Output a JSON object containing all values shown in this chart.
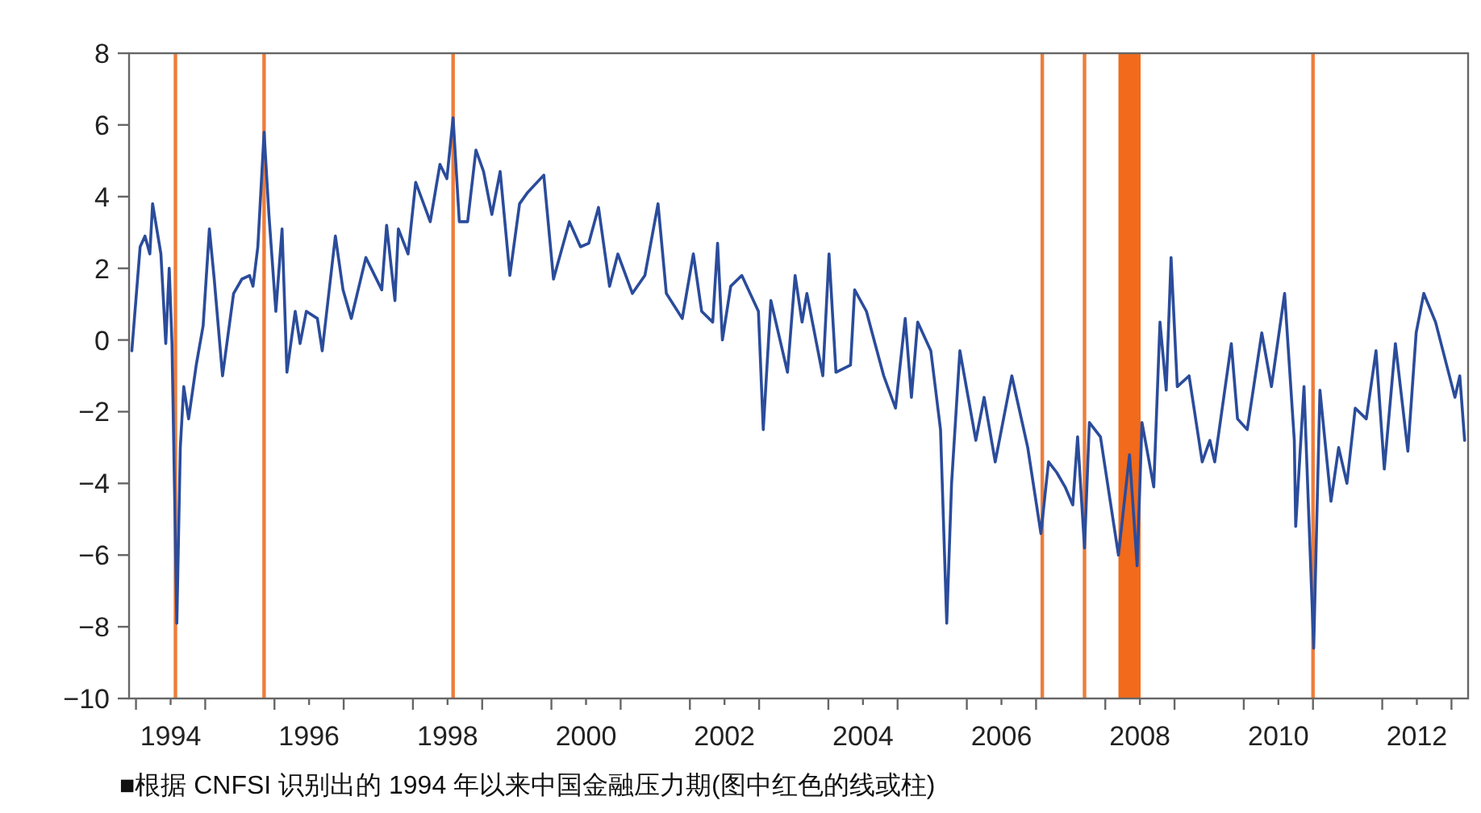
{
  "chart_data": {
    "type": "line",
    "x": [
      1993.94,
      1994.06,
      1994.13,
      1994.2,
      1994.24,
      1994.36,
      1994.43,
      1994.48,
      1994.52,
      1994.59,
      1994.64,
      1994.69,
      1994.76,
      1994.87,
      1994.97,
      1995.06,
      1995.13,
      1995.25,
      1995.41,
      1995.53,
      1995.64,
      1995.69,
      1995.76,
      1995.85,
      1995.92,
      1996.02,
      1996.11,
      1996.18,
      1996.3,
      1996.37,
      1996.46,
      1996.62,
      1996.69,
      1996.88,
      1996.99,
      1997.11,
      1997.32,
      1997.55,
      1997.62,
      1997.74,
      1997.79,
      1997.93,
      1998.04,
      1998.25,
      1998.39,
      1998.49,
      1998.58,
      1998.67,
      1998.79,
      1998.91,
      1999.02,
      1999.14,
      1999.26,
      1999.4,
      1999.54,
      1999.65,
      1999.89,
      2000.03,
      2000.26,
      2000.42,
      2000.54,
      2000.68,
      2000.84,
      2000.96,
      2001.17,
      2001.35,
      2001.54,
      2001.66,
      2001.89,
      2002.05,
      2002.17,
      2002.33,
      2002.4,
      2002.47,
      2002.59,
      2002.75,
      2002.99,
      2003.06,
      2003.17,
      2003.41,
      2003.52,
      2003.62,
      2003.69,
      2003.92,
      2004.01,
      2004.11,
      2004.32,
      2004.38,
      2004.55,
      2004.66,
      2004.8,
      2004.97,
      2005.11,
      2005.2,
      2005.29,
      2005.48,
      2005.62,
      2005.71,
      2005.78,
      2005.9,
      2006.13,
      2006.25,
      2006.41,
      2006.65,
      2006.88,
      2007.07,
      2007.18,
      2007.3,
      2007.42,
      2007.53,
      2007.6,
      2007.7,
      2007.77,
      2007.93,
      2008.19,
      2008.35,
      2008.46,
      2008.53,
      2008.7,
      2008.79,
      2008.88,
      2008.95,
      2009.04,
      2009.21,
      2009.4,
      2009.51,
      2009.58,
      2009.82,
      2009.91,
      2010.05,
      2010.26,
      2010.4,
      2010.59,
      2010.73,
      2010.75,
      2010.87,
      2011.01,
      2011.1,
      2011.26,
      2011.37,
      2011.49,
      2011.61,
      2011.77,
      2011.91,
      2012.03,
      2012.19,
      2012.37,
      2012.49,
      2012.6,
      2012.77,
      2013.05,
      2013.12,
      2013.19
    ],
    "series": [
      {
        "color": "#2b4c9b",
        "values": [
          -0.3,
          2.6,
          2.9,
          2.4,
          3.8,
          2.4,
          -0.1,
          2.0,
          -0.1,
          -7.9,
          -3.0,
          -1.3,
          -2.2,
          -0.7,
          0.4,
          3.1,
          1.7,
          -1.0,
          1.3,
          1.7,
          1.8,
          1.5,
          2.6,
          5.8,
          3.5,
          0.8,
          3.1,
          -0.9,
          0.8,
          -0.1,
          0.8,
          0.6,
          -0.3,
          2.9,
          1.4,
          0.6,
          2.3,
          1.4,
          3.2,
          1.1,
          3.1,
          2.4,
          4.4,
          3.3,
          4.9,
          4.5,
          6.2,
          3.3,
          3.3,
          5.3,
          4.7,
          3.5,
          4.7,
          1.8,
          3.8,
          4.1,
          4.6,
          1.7,
          3.3,
          2.6,
          2.7,
          3.7,
          1.5,
          2.4,
          1.3,
          1.8,
          3.8,
          1.3,
          0.6,
          2.4,
          0.8,
          0.5,
          2.7,
          0.0,
          1.5,
          1.8,
          0.8,
          -2.5,
          1.1,
          -0.9,
          1.8,
          0.5,
          1.3,
          -1.0,
          2.4,
          -0.9,
          -0.7,
          1.4,
          0.8,
          0.0,
          -1.0,
          -1.9,
          0.6,
          -1.6,
          0.5,
          -0.3,
          -2.5,
          -7.9,
          -4.0,
          -0.3,
          -2.8,
          -1.6,
          -3.4,
          -1.0,
          -3.0,
          -5.4,
          -3.4,
          -3.7,
          -4.1,
          -4.6,
          -2.7,
          -5.8,
          -2.3,
          -2.7,
          -6.0,
          -3.2,
          -6.3,
          -2.3,
          -4.1,
          0.5,
          -1.4,
          2.3,
          -1.3,
          -1.0,
          -3.4,
          -2.8,
          -3.4,
          -0.1,
          -2.2,
          -2.5,
          0.2,
          -1.3,
          1.3,
          -2.8,
          -5.2,
          -1.3,
          -8.6,
          -1.4,
          -4.5,
          -3.0,
          -4.0,
          -1.9,
          -2.2,
          -0.3,
          -3.6,
          -0.1,
          -3.1,
          0.2,
          1.3,
          0.5,
          -1.6,
          -1.0,
          -2.8
        ]
      }
    ],
    "xlim": [
      1993.9,
      2013.24
    ],
    "xticks": [
      {
        "value": 1994,
        "label": null
      },
      {
        "value": 1994.5,
        "label": "1994"
      },
      {
        "value": 1995,
        "label": null
      },
      {
        "value": 1996,
        "label": null
      },
      {
        "value": 1996.5,
        "label": "1996"
      },
      {
        "value": 1997,
        "label": null
      },
      {
        "value": 1998,
        "label": null
      },
      {
        "value": 1998.5,
        "label": "1998"
      },
      {
        "value": 1999,
        "label": null
      },
      {
        "value": 2000,
        "label": null
      },
      {
        "value": 2000.5,
        "label": "2000"
      },
      {
        "value": 2001,
        "label": null
      },
      {
        "value": 2002,
        "label": null
      },
      {
        "value": 2002.5,
        "label": "2002"
      },
      {
        "value": 2003,
        "label": null
      },
      {
        "value": 2004,
        "label": null
      },
      {
        "value": 2004.5,
        "label": "2004"
      },
      {
        "value": 2005,
        "label": null
      },
      {
        "value": 2006,
        "label": null
      },
      {
        "value": 2006.5,
        "label": "2006"
      },
      {
        "value": 2007,
        "label": null
      },
      {
        "value": 2008,
        "label": null
      },
      {
        "value": 2008.5,
        "label": "2008"
      },
      {
        "value": 2009,
        "label": null
      },
      {
        "value": 2010,
        "label": null
      },
      {
        "value": 2010.5,
        "label": "2010"
      },
      {
        "value": 2011,
        "label": null
      },
      {
        "value": 2012,
        "label": null
      },
      {
        "value": 2012.5,
        "label": "2012"
      },
      {
        "value": 2013,
        "label": null
      }
    ],
    "ylim": [
      -10,
      8
    ],
    "yticks": [
      {
        "value": -10,
        "label": "−10"
      },
      {
        "value": -8,
        "label": "−8"
      },
      {
        "value": -6,
        "label": "−6"
      },
      {
        "value": -4,
        "label": "−4"
      },
      {
        "value": -2,
        "label": "−2"
      },
      0,
      2,
      4,
      6,
      8
    ],
    "ref_lines": [
      {
        "axis": "x",
        "value": 1994.57,
        "color": "#ee7d3b"
      },
      {
        "axis": "x",
        "value": 1995.85,
        "color": "#ee7d3b"
      },
      {
        "axis": "x",
        "value": 1998.58,
        "color": "#ee7d3b"
      },
      {
        "axis": "x",
        "value": 2007.09,
        "color": "#ee7d3b"
      },
      {
        "axis": "x",
        "value": 2007.7,
        "color": "#ee7d3b"
      },
      {
        "axis": "x",
        "value": 2011.0,
        "color": "#ee7d3b"
      }
    ],
    "bands": [
      {
        "axis": "x",
        "from": 2008.19,
        "to": 2008.51,
        "color": "#f26a1b"
      }
    ],
    "annotations": [
      "■根据 CNFSI 识别出的 1994 年以来中国金融压力期(图中红色的线或柱)"
    ],
    "grid": false
  }
}
